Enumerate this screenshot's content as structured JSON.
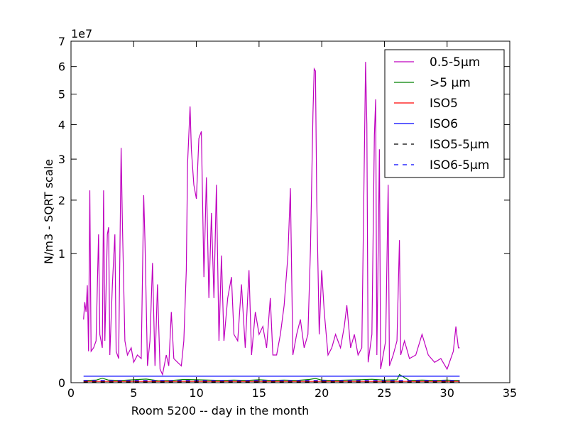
{
  "chart_data": {
    "type": "line",
    "xlabel": "Room 5200 -- day in the month",
    "ylabel": "N/m3 - SQRT scale",
    "y_offset_label": "1e7",
    "yscale": "sqrt",
    "xlim": [
      0,
      35
    ],
    "xticks": [
      0,
      5,
      10,
      15,
      20,
      25,
      30,
      35
    ],
    "ylim": [
      0,
      7
    ],
    "yticks": [
      0,
      1,
      2,
      3,
      4,
      5,
      6,
      7
    ],
    "legend": "upper right",
    "series": [
      {
        "name": "0.5-5µm",
        "color": "#bf00bf",
        "linestyle": "solid",
        "x": [
          1.0,
          1.1,
          1.2,
          1.3,
          1.4,
          1.5,
          1.6,
          1.8,
          2.0,
          2.2,
          2.3,
          2.5,
          2.6,
          2.7,
          2.9,
          3.0,
          3.1,
          3.3,
          3.5,
          3.6,
          3.8,
          4.0,
          4.1,
          4.3,
          4.5,
          4.8,
          5.0,
          5.3,
          5.6,
          5.8,
          5.9,
          6.1,
          6.3,
          6.5,
          6.7,
          6.9,
          7.1,
          7.3,
          7.6,
          7.8,
          8.0,
          8.2,
          8.5,
          8.8,
          9.0,
          9.2,
          9.3,
          9.5,
          9.6,
          9.8,
          10.0,
          10.2,
          10.4,
          10.6,
          10.8,
          11.0,
          11.2,
          11.4,
          11.6,
          11.8,
          12.0,
          12.2,
          12.5,
          12.8,
          13.0,
          13.3,
          13.6,
          13.9,
          14.2,
          14.4,
          14.7,
          15.0,
          15.3,
          15.6,
          15.9,
          16.1,
          16.4,
          16.7,
          17.0,
          17.3,
          17.5,
          17.7,
          18.0,
          18.3,
          18.6,
          18.9,
          19.1,
          19.3,
          19.4,
          19.5,
          19.6,
          19.8,
          20.0,
          20.2,
          20.5,
          20.8,
          21.1,
          21.5,
          21.8,
          22.0,
          22.3,
          22.6,
          22.9,
          23.2,
          23.5,
          23.6,
          23.7,
          24.0,
          24.2,
          24.3,
          24.4,
          24.6,
          24.7,
          24.9,
          25.1,
          25.3,
          25.4,
          25.7,
          26.0,
          26.2,
          26.3,
          26.6,
          27.0,
          27.5,
          28.0,
          28.5,
          29.0,
          29.5,
          30.0,
          30.5,
          30.7,
          30.9,
          31.0
        ],
        "values": [
          0.24,
          0.39,
          0.3,
          0.57,
          0.059,
          2.22,
          0.059,
          0.073,
          0.105,
          1.32,
          0.14,
          0.073,
          2.22,
          0.105,
          1.32,
          1.45,
          0.046,
          0.58,
          1.32,
          0.059,
          0.035,
          3.31,
          1.52,
          0.105,
          0.046,
          0.073,
          0.025,
          0.046,
          0.035,
          2.11,
          1.2,
          0.017,
          0.105,
          0.86,
          0.017,
          0.58,
          0.011,
          0.004,
          0.046,
          0.017,
          0.3,
          0.035,
          0.025,
          0.017,
          0.105,
          0.76,
          2.89,
          4.58,
          3.27,
          2.35,
          2.03,
          3.58,
          3.79,
          0.67,
          2.53,
          0.43,
          1.73,
          0.43,
          2.35,
          0.105,
          0.97,
          0.105,
          0.43,
          0.67,
          0.14,
          0.105,
          0.58,
          0.073,
          0.76,
          0.046,
          0.3,
          0.14,
          0.19,
          0.073,
          0.43,
          0.046,
          0.046,
          0.14,
          0.36,
          0.97,
          2.27,
          0.046,
          0.14,
          0.24,
          0.073,
          0.14,
          1.08,
          4.35,
          5.91,
          5.83,
          2.03,
          0.14,
          0.76,
          0.3,
          0.046,
          0.073,
          0.14,
          0.073,
          0.19,
          0.36,
          0.073,
          0.14,
          0.046,
          0.073,
          6.18,
          4.0,
          0.025,
          0.14,
          3.68,
          4.82,
          0.046,
          3.27,
          0.011,
          0.046,
          0.105,
          2.35,
          0.017,
          0.046,
          0.105,
          1.22,
          0.046,
          0.105,
          0.035,
          0.046,
          0.14,
          0.046,
          0.025,
          0.035,
          0.011,
          0.059,
          0.19,
          0.073,
          0.073
        ]
      },
      {
        "name": ">5 µm",
        "color": "#008000",
        "linestyle": "solid",
        "x": [
          1.0,
          2.0,
          2.5,
          3.0,
          4.0,
          5.0,
          6.0,
          7.0,
          8.0,
          9.0,
          10.0,
          11.0,
          12.0,
          13.0,
          14.0,
          15.0,
          16.0,
          17.0,
          18.0,
          19.0,
          19.5,
          20.0,
          21.0,
          22.0,
          23.0,
          24.0,
          25.0,
          26.0,
          26.2,
          27.0,
          28.0,
          29.0,
          30.0,
          31.0
        ],
        "values": [
          0.0003,
          0.0004,
          0.0012,
          0.0004,
          0.0003,
          0.0005,
          0.0008,
          0.0002,
          0.0003,
          0.0006,
          0.0005,
          0.0004,
          0.0003,
          0.0004,
          0.0003,
          0.0005,
          0.0003,
          0.0004,
          0.0003,
          0.0006,
          0.0011,
          0.0004,
          0.0003,
          0.0004,
          0.0005,
          0.0007,
          0.0004,
          0.0005,
          0.004,
          0.0003,
          0.0004,
          0.0003,
          0.0004,
          0.0003
        ]
      },
      {
        "name": "ISO5",
        "color": "#ff0000",
        "linestyle": "solid",
        "x": [
          1.0,
          31.0
        ],
        "values": [
          0.0001,
          0.0001
        ]
      },
      {
        "name": "ISO6",
        "color": "#0000ff",
        "linestyle": "solid",
        "x": [
          1.0,
          31.0
        ],
        "values": [
          0.0025,
          0.0025
        ]
      },
      {
        "name": "ISO5-5µm",
        "color": "#000000",
        "linestyle": "dashed",
        "x": [
          1.0,
          31.0
        ],
        "values": [
          3e-05,
          3e-05
        ]
      },
      {
        "name": "ISO6-5µm",
        "color": "#0000ff",
        "linestyle": "dashed",
        "x": [
          1.0,
          31.0
        ],
        "values": [
          0.0003,
          0.0003
        ]
      }
    ]
  }
}
